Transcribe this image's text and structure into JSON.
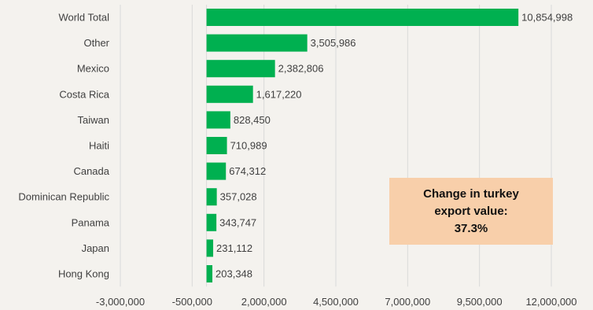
{
  "chart_data": {
    "type": "bar",
    "orientation": "horizontal",
    "categories": [
      "World Total",
      "Other",
      "Mexico",
      "Costa Rica",
      "Taiwan",
      "Haiti",
      "Canada",
      "Dominican Republic",
      "Panama",
      "Japan",
      "Hong Kong"
    ],
    "values": [
      10854998,
      3505986,
      2382806,
      1617220,
      828450,
      710989,
      674312,
      357028,
      343747,
      231112,
      203348
    ],
    "value_labels": [
      "10,854,998",
      "3,505,986",
      "2,382,806",
      "1,617,220",
      "828,450",
      "710,989",
      "674,312",
      "357,028",
      "343,747",
      "231,112",
      "203,348"
    ],
    "x_ticks": [
      -3000000,
      -500000,
      2000000,
      4500000,
      7000000,
      9500000,
      12000000
    ],
    "x_tick_labels": [
      "-3,000,000",
      "-500,000",
      "2,000,000",
      "4,500,000",
      "7,000,000",
      "9,500,000",
      "12,000,000"
    ],
    "xlim": [
      -3000000,
      12000000
    ],
    "grid": true,
    "bar_color": "#00b050",
    "title": "",
    "xlabel": "",
    "ylabel": ""
  },
  "annotation": {
    "line1": "Change in turkey",
    "line2": "export value:",
    "line3": "37.3%",
    "background_color": "#f8cfaa"
  },
  "colors": {
    "background": "#f4f2ee",
    "gridline": "#d9d9d9",
    "text": "#404040",
    "bar": "#00b050"
  }
}
